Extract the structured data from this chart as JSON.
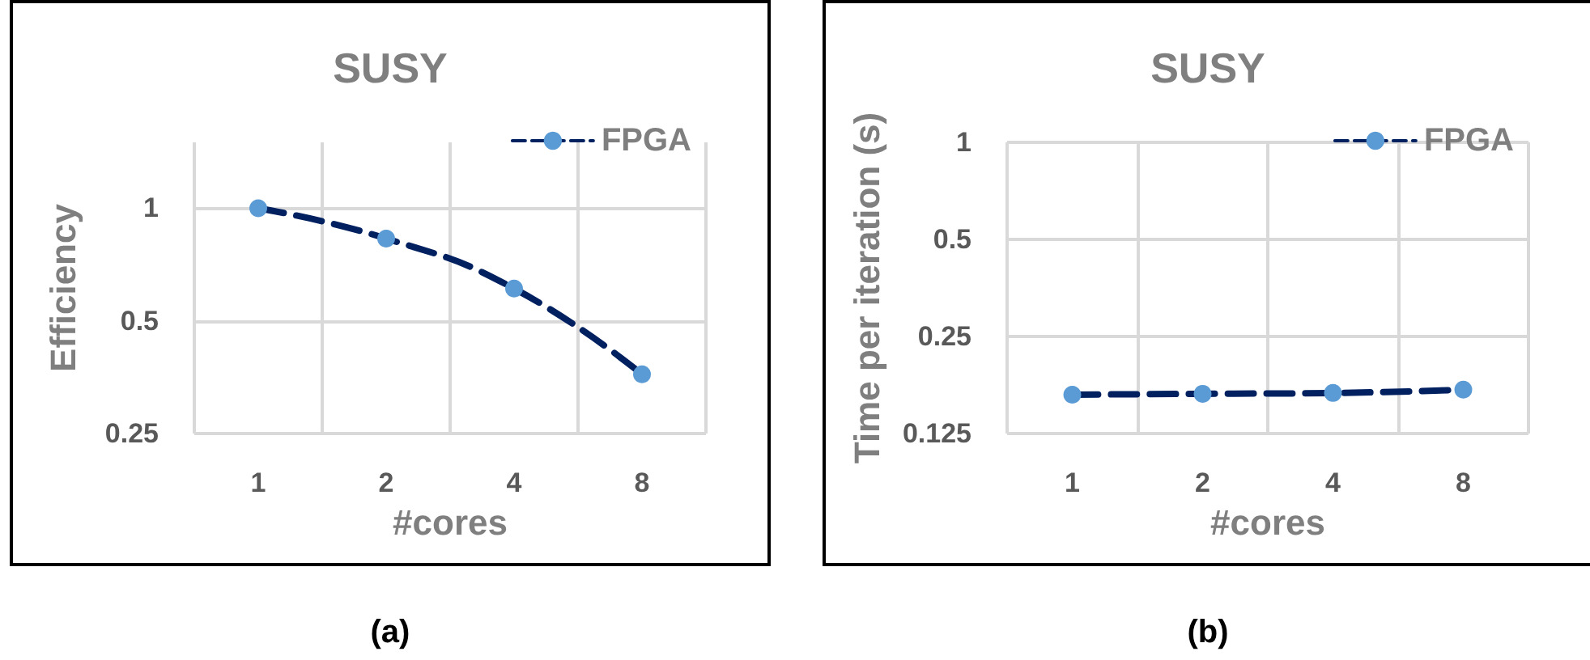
{
  "chart_data": [
    {
      "type": "line",
      "title": "SUSY",
      "xlabel": "#cores",
      "ylabel": "Efficiency",
      "categories": [
        "1",
        "2",
        "4",
        "8"
      ],
      "series": [
        {
          "name": "FPGA",
          "color": "#002060",
          "values": [
            1,
            0.83,
            0.61,
            0.36
          ]
        }
      ],
      "log": "y",
      "ylim": [
        0.25,
        1.5
      ],
      "yticks": [
        0.25,
        0.5,
        1
      ],
      "grid": true,
      "legend": "top right",
      "marker": "circle",
      "line_style": "dashed",
      "annotations": [
        "(a)"
      ]
    },
    {
      "type": "line",
      "title": "SUSY",
      "xlabel": "#cores",
      "ylabel": "Time per iteration (s)",
      "categories": [
        "1",
        "2",
        "4",
        "8"
      ],
      "series": [
        {
          "name": "FPGA",
          "color": "#002060",
          "values": [
            0.165,
            0.166,
            0.167,
            0.171
          ]
        }
      ],
      "log": "y",
      "ylim": [
        0.125,
        1
      ],
      "yticks": [
        0.125,
        0.25,
        0.5,
        1
      ],
      "grid": true,
      "legend": "top right",
      "marker": "circle",
      "line_style": "dashed",
      "annotations": [
        "(b)"
      ]
    }
  ]
}
